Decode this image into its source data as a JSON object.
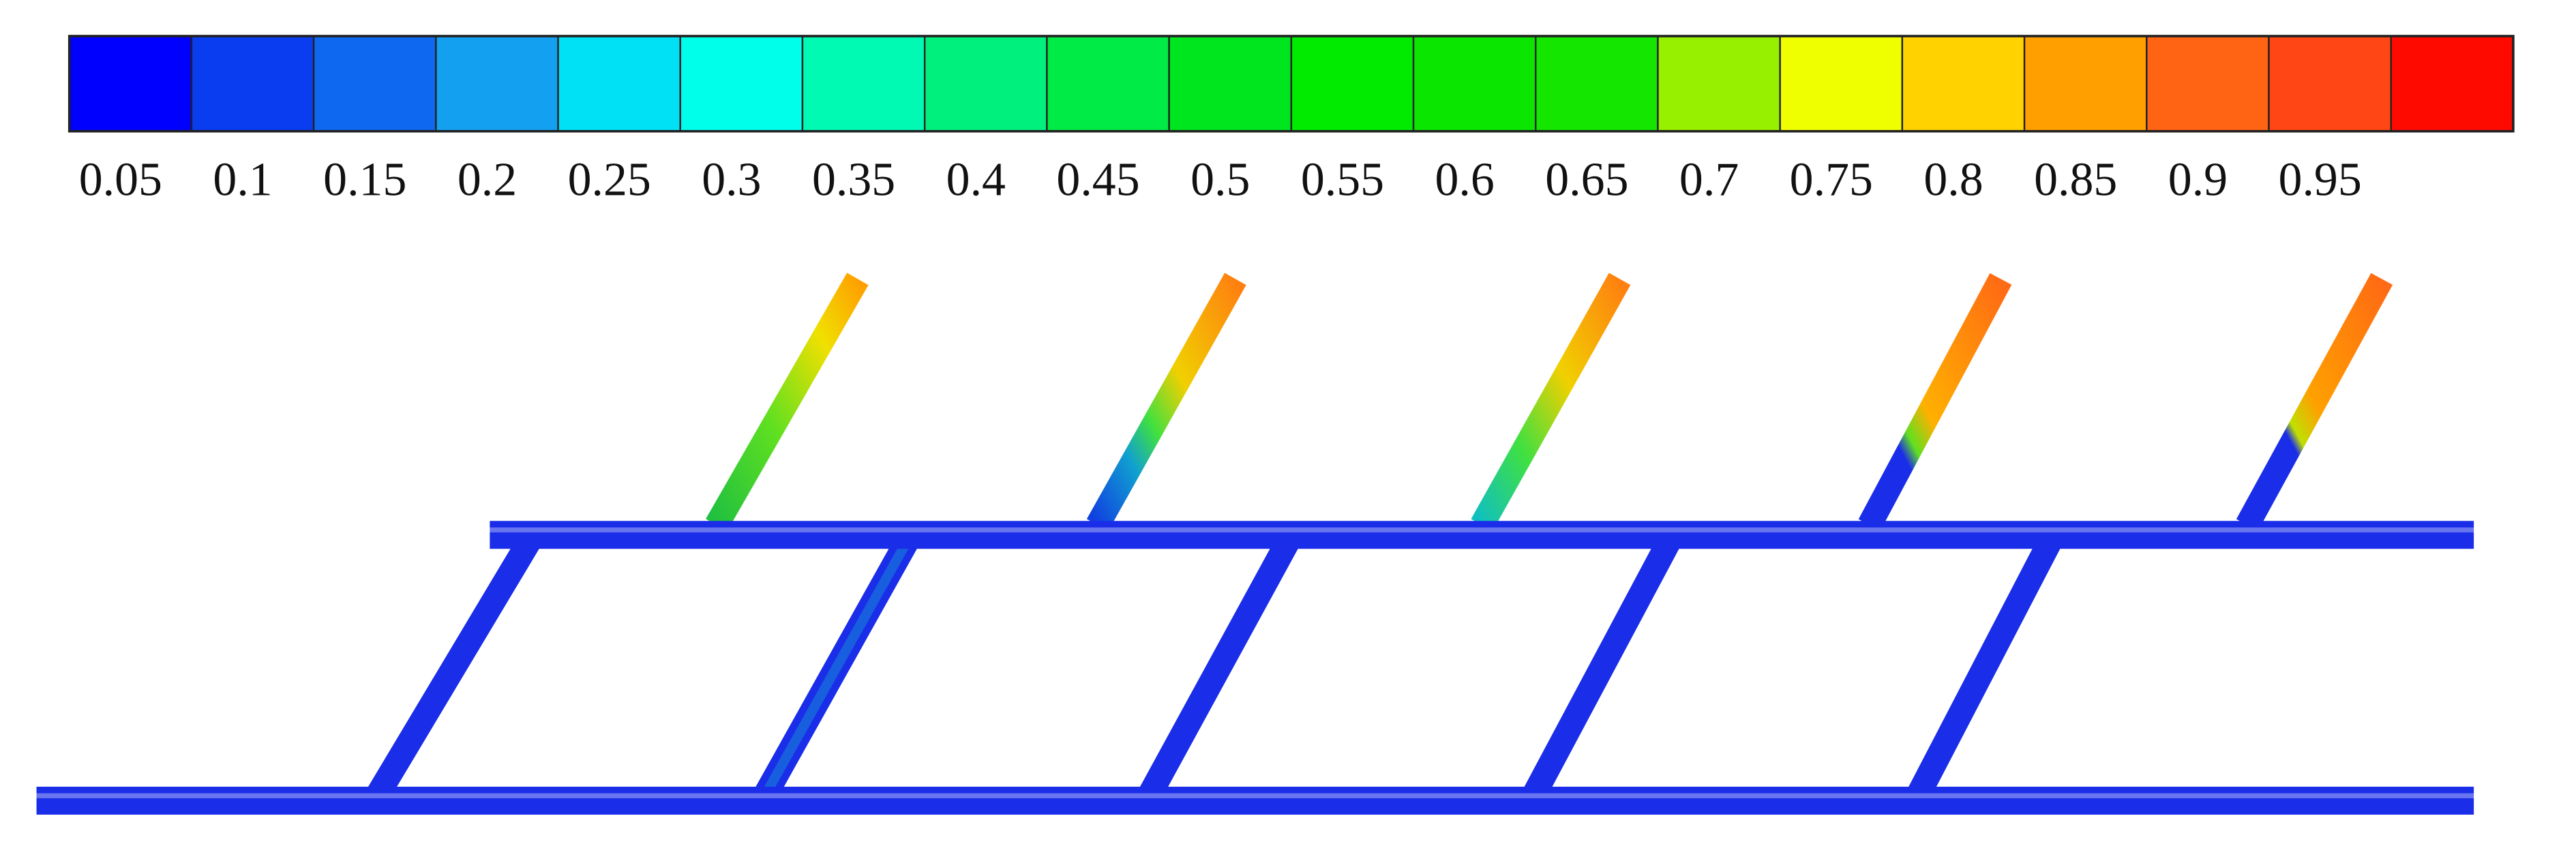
{
  "colorbar": {
    "ticks": [
      0.05,
      0.1,
      0.15,
      0.2,
      0.25,
      0.3,
      0.35,
      0.4,
      0.45,
      0.5,
      0.55,
      0.6,
      0.65,
      0.7,
      0.75,
      0.8,
      0.85,
      0.9,
      0.95
    ],
    "colors": [
      "#0000ff",
      "#0a3cf0",
      "#0f69f0",
      "#14a0f0",
      "#00e1f5",
      "#00ffeb",
      "#00fab4",
      "#00f07d",
      "#00eb46",
      "#00e61e",
      "#00eb00",
      "#0ae600",
      "#14e600",
      "#96f000",
      "#f0ff00",
      "#ffd200",
      "#ffa000",
      "#ff6414",
      "#ff4614",
      "#ff0a00"
    ]
  }
}
